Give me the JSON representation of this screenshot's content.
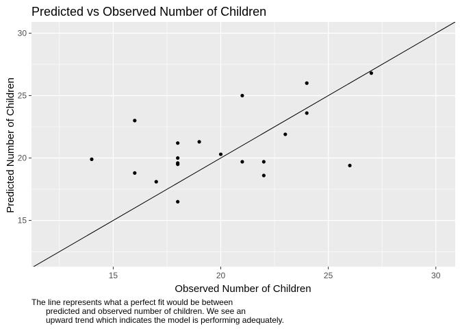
{
  "chart_data": {
    "type": "scatter",
    "title": "Predicted vs Observed Number of Children",
    "xlabel": "Observed Number of Children",
    "ylabel": "Predicted Number of Children",
    "xlim": [
      11.2,
      30.9
    ],
    "ylim": [
      11.3,
      30.9
    ],
    "x_ticks": [
      15,
      20,
      25,
      30
    ],
    "y_ticks": [
      15,
      20,
      25,
      30
    ],
    "grid": true,
    "legend": "none",
    "reference_line": {
      "type": "identity",
      "slope": 1,
      "intercept": 0
    },
    "points": [
      {
        "x": 14,
        "y": 19.9
      },
      {
        "x": 16,
        "y": 23.0
      },
      {
        "x": 16,
        "y": 18.8
      },
      {
        "x": 17,
        "y": 18.1
      },
      {
        "x": 18,
        "y": 21.2
      },
      {
        "x": 18,
        "y": 20.0
      },
      {
        "x": 18,
        "y": 19.6
      },
      {
        "x": 18,
        "y": 19.5
      },
      {
        "x": 18,
        "y": 16.5
      },
      {
        "x": 19,
        "y": 21.3
      },
      {
        "x": 20,
        "y": 20.3
      },
      {
        "x": 21,
        "y": 25.0
      },
      {
        "x": 21,
        "y": 19.7
      },
      {
        "x": 22,
        "y": 19.7
      },
      {
        "x": 22,
        "y": 18.6
      },
      {
        "x": 23,
        "y": 21.9
      },
      {
        "x": 24,
        "y": 26.0
      },
      {
        "x": 24,
        "y": 23.6
      },
      {
        "x": 26,
        "y": 19.4
      },
      {
        "x": 27,
        "y": 26.8
      }
    ],
    "caption_lines": [
      "The line represents what a perfect fit would be between",
      "predicted and observed number of children. We see an",
      "upward trend which indicates the model is performing adequately."
    ],
    "colors": {
      "panel_background": "#ebebeb",
      "grid_major": "#ffffff",
      "points": "#000000",
      "line": "#000000"
    }
  }
}
